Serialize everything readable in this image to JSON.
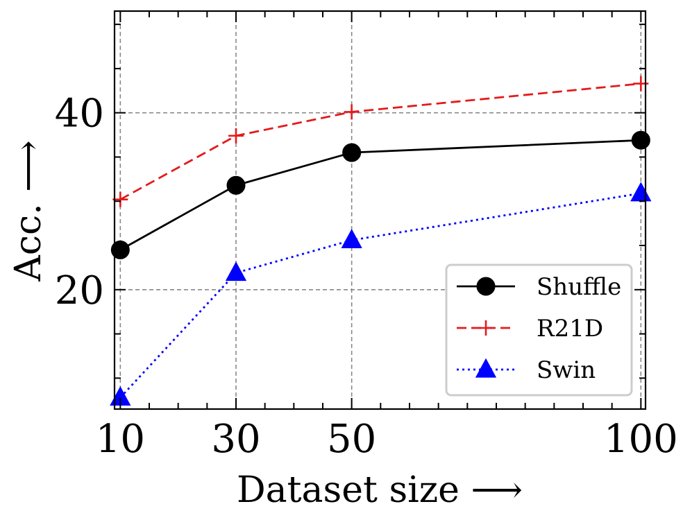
{
  "chart_data": {
    "type": "line",
    "title": "",
    "xlabel": "Dataset size ⟶",
    "ylabel": "Acc. ⟶",
    "x": [
      10,
      30,
      50,
      100
    ],
    "xlim": [
      9,
      100.8
    ],
    "ylim": [
      6.5,
      51.5
    ],
    "xticks": [
      10,
      30,
      50,
      100
    ],
    "xtick_labels": [
      "10",
      "30",
      "50",
      "100"
    ],
    "yticks": [
      20,
      40
    ],
    "ytick_labels": [
      "20",
      "40"
    ],
    "y_minor_ticks": [
      10,
      15,
      25,
      30,
      35,
      45,
      50
    ],
    "x_minor_ticks": [
      15,
      20,
      25,
      35,
      40,
      45,
      55,
      60,
      65,
      70,
      75,
      80,
      85,
      90,
      95
    ],
    "grid": true,
    "legend_position": "bottom-right",
    "series": [
      {
        "name": "Shuffle",
        "values": [
          24.5,
          31.8,
          35.5,
          36.9
        ],
        "color": "#000000",
        "dash": "solid",
        "marker": "circle"
      },
      {
        "name": "R21D",
        "values": [
          30.2,
          37.4,
          40.1,
          43.3
        ],
        "color": "#e41a1c",
        "dash": "dashed",
        "marker": "plus"
      },
      {
        "name": "Swin",
        "values": [
          7.8,
          21.9,
          25.6,
          30.9
        ],
        "color": "#0000ff",
        "dash": "dotted",
        "marker": "triangle"
      }
    ]
  }
}
